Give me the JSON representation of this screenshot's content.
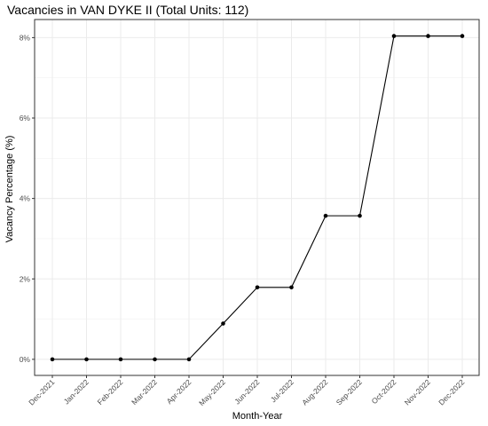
{
  "chart_data": {
    "type": "line",
    "title": "Vacancies in VAN DYKE II (Total Units: 112)",
    "xlabel": "Month-Year",
    "ylabel": "Vacancy Percentage (%)",
    "categories": [
      "Dec-2021",
      "Jan-2022",
      "Feb-2022",
      "Mar-2022",
      "Apr-2022",
      "May-2022",
      "Jun-2022",
      "Jul-2022",
      "Aug-2022",
      "Sep-2022",
      "Oct-2022",
      "Nov-2022",
      "Dec-2022"
    ],
    "values": [
      0,
      0,
      0,
      0,
      0,
      0.89,
      1.79,
      1.79,
      3.57,
      3.57,
      8.04,
      8.04,
      8.04
    ],
    "ylim": [
      -0.4,
      8.45
    ],
    "yticks": [
      0,
      2,
      4,
      6,
      8
    ],
    "ytick_labels": [
      "0%",
      "2%",
      "4%",
      "6%",
      "8%"
    ],
    "grid": true,
    "legend": "none",
    "line_color": "#000000",
    "point_color": "#000000",
    "grid_color": "#ebebeb",
    "panel_border_color": "#333333"
  }
}
